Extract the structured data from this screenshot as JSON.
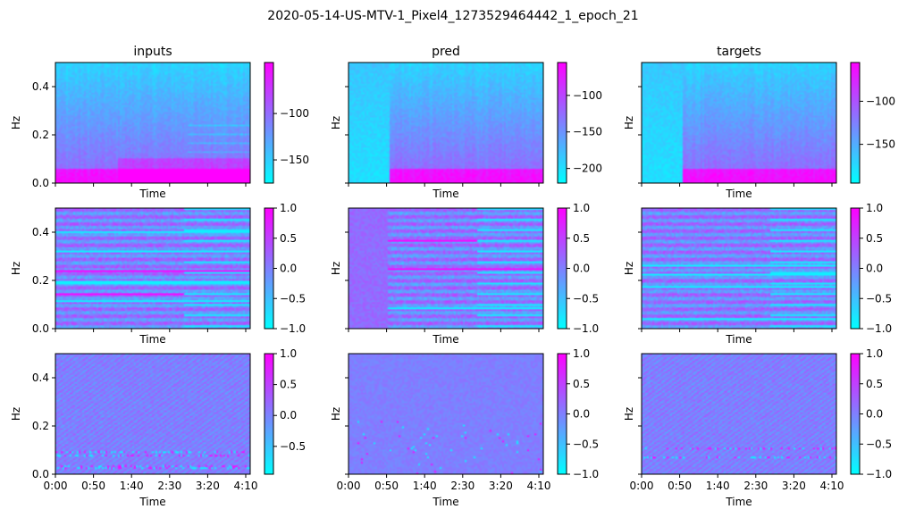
{
  "figure": {
    "suptitle": "2020-05-14-US-MTV-1_Pixel4_1273529464442_1_epoch_21"
  },
  "chart_data": {
    "type": "heatmap",
    "colormap": "cool",
    "colormap_stops": [
      "#00ffff",
      "#ff00ff"
    ],
    "grid": false,
    "columns": [
      "inputs",
      "pred",
      "targets"
    ],
    "row_count": 3,
    "xlabel": "Time",
    "ylabel": "Hz",
    "ylim": [
      0.0,
      0.5
    ],
    "yticks": [
      "0.0",
      "0.2",
      "0.4"
    ],
    "xticks_bottom_row": [
      "0:00",
      "0:50",
      "1:40",
      "2:30",
      "3:20",
      "4:10"
    ],
    "panels": [
      {
        "row": 0,
        "col": 0,
        "title": "inputs",
        "colorbar_ticks": [
          "-100",
          "-150"
        ],
        "colorbar_range": [
          -175,
          -45
        ],
        "pattern": "magnitude",
        "show_ylabels": true
      },
      {
        "row": 0,
        "col": 1,
        "title": "pred",
        "colorbar_ticks": [
          "-100",
          "-150",
          "-200"
        ],
        "colorbar_range": [
          -220,
          -55
        ],
        "pattern": "magnitude_split",
        "show_ylabels": false
      },
      {
        "row": 0,
        "col": 2,
        "title": "targets",
        "colorbar_ticks": [
          "-100",
          "-150"
        ],
        "colorbar_range": [
          -195,
          -55
        ],
        "pattern": "magnitude_split",
        "show_ylabels": false
      },
      {
        "row": 1,
        "col": 0,
        "title": "",
        "colorbar_ticks": [
          "1.0",
          "0.5",
          "0.0",
          "-0.5",
          "-1.0"
        ],
        "colorbar_range": [
          -1.0,
          1.0
        ],
        "pattern": "phase_stripes",
        "show_ylabels": true
      },
      {
        "row": 1,
        "col": 1,
        "title": "",
        "colorbar_ticks": [
          "1.0",
          "0.5",
          "0.0",
          "-0.5",
          "-1.0"
        ],
        "colorbar_range": [
          -1.0,
          1.0
        ],
        "pattern": "phase_stripes_soft",
        "show_ylabels": false
      },
      {
        "row": 1,
        "col": 2,
        "title": "",
        "colorbar_ticks": [
          "1.0",
          "0.5",
          "0.0",
          "-0.5",
          "-1.0"
        ],
        "colorbar_range": [
          -1.0,
          1.0
        ],
        "pattern": "phase_stripes",
        "show_ylabels": false
      },
      {
        "row": 2,
        "col": 0,
        "title": "",
        "colorbar_ticks": [
          "1.0",
          "0.5",
          "0.0",
          "-0.5"
        ],
        "colorbar_range": [
          -0.95,
          1.0
        ],
        "pattern": "phase_fine",
        "show_ylabels": true
      },
      {
        "row": 2,
        "col": 1,
        "title": "",
        "colorbar_ticks": [
          "1.0",
          "0.5",
          "0.0",
          "-0.5",
          "-1.0"
        ],
        "colorbar_range": [
          -1.0,
          1.0
        ],
        "pattern": "phase_faint",
        "show_ylabels": false
      },
      {
        "row": 2,
        "col": 2,
        "title": "",
        "colorbar_ticks": [
          "1.0",
          "0.5",
          "0.0",
          "-0.5",
          "-1.0"
        ],
        "colorbar_range": [
          -1.0,
          1.0
        ],
        "pattern": "phase_fine",
        "show_ylabels": false
      }
    ]
  }
}
